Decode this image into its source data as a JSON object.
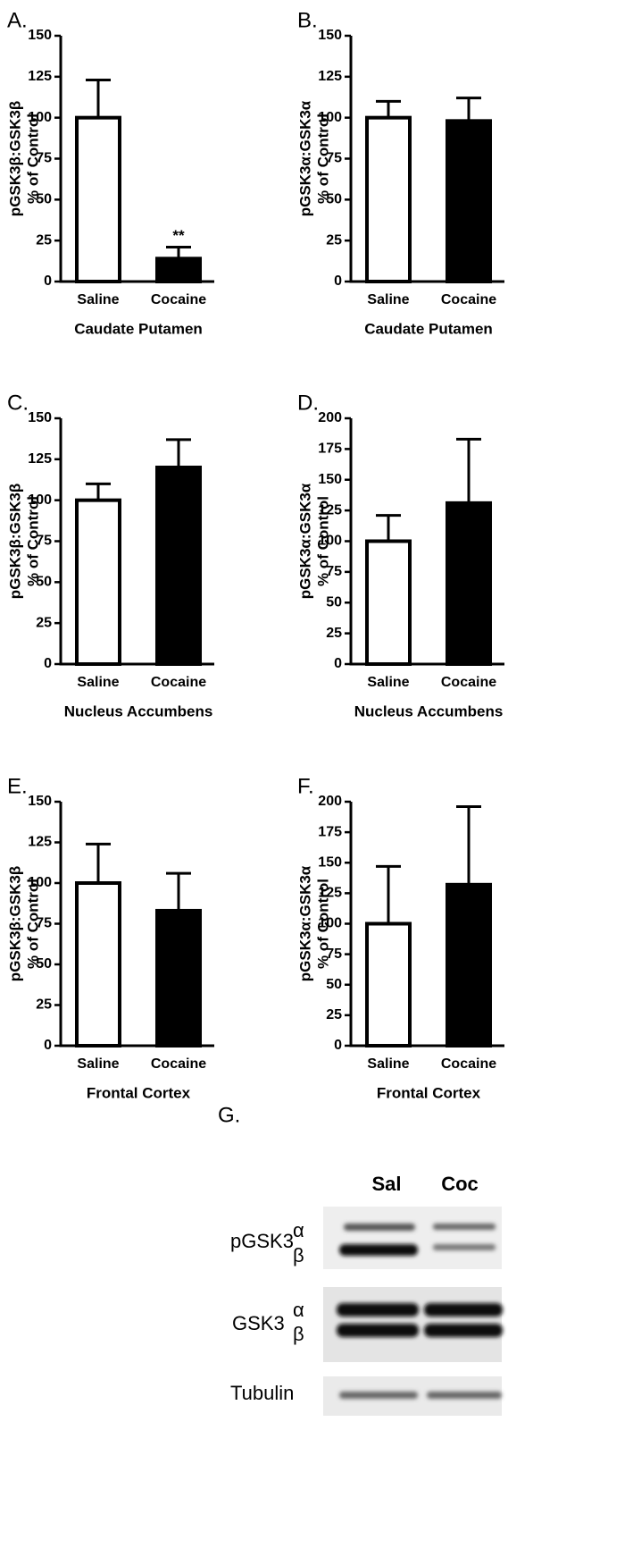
{
  "chart_data": [
    {
      "type": "bar",
      "panel": "A.",
      "ylabel": [
        "pGSK3β:GSK3β",
        "% of Control"
      ],
      "xlabel": "Caudate Putamen",
      "categories": [
        "Saline",
        "Cocaine"
      ],
      "values": [
        100,
        14
      ],
      "errors": [
        23,
        7
      ],
      "colors": [
        "#ffffff",
        "#000000"
      ],
      "annotations": [
        {
          "text": "**",
          "category": "Cocaine"
        }
      ],
      "ylim": [
        0,
        150
      ],
      "yticks": [
        0,
        25,
        50,
        75,
        100,
        125,
        150
      ]
    },
    {
      "type": "bar",
      "panel": "B.",
      "ylabel": [
        "pGSK3α:GSK3α",
        "% of Control"
      ],
      "xlabel": "Caudate Putamen",
      "categories": [
        "Saline",
        "Cocaine"
      ],
      "values": [
        100,
        98
      ],
      "errors": [
        10,
        14
      ],
      "colors": [
        "#ffffff",
        "#000000"
      ],
      "ylim": [
        0,
        150
      ],
      "yticks": [
        0,
        25,
        50,
        75,
        100,
        125,
        150
      ]
    },
    {
      "type": "bar",
      "panel": "C.",
      "ylabel": [
        "pGSK3β:GSK3β",
        "% of Control"
      ],
      "xlabel": "Nucleus Accumbens",
      "categories": [
        "Saline",
        "Cocaine"
      ],
      "values": [
        100,
        120
      ],
      "errors": [
        10,
        17
      ],
      "colors": [
        "#ffffff",
        "#000000"
      ],
      "ylim": [
        0,
        150
      ],
      "yticks": [
        0,
        25,
        50,
        75,
        100,
        125,
        150
      ]
    },
    {
      "type": "bar",
      "panel": "D.",
      "ylabel": [
        "pGSK3α:GSK3α",
        "% of Control"
      ],
      "xlabel": "Nucleus Accumbens",
      "categories": [
        "Saline",
        "Cocaine"
      ],
      "values": [
        100,
        131
      ],
      "errors": [
        21,
        52
      ],
      "colors": [
        "#ffffff",
        "#000000"
      ],
      "ylim": [
        0,
        200
      ],
      "yticks": [
        0,
        25,
        50,
        75,
        100,
        125,
        150,
        175,
        200
      ]
    },
    {
      "type": "bar",
      "panel": "E.",
      "ylabel": [
        "pGSK3β:GSK3β",
        "% of Control"
      ],
      "xlabel": "Frontal Cortex",
      "categories": [
        "Saline",
        "Cocaine"
      ],
      "values": [
        100,
        83
      ],
      "errors": [
        24,
        23
      ],
      "colors": [
        "#ffffff",
        "#000000"
      ],
      "ylim": [
        0,
        150
      ],
      "yticks": [
        0,
        25,
        50,
        75,
        100,
        125,
        150
      ]
    },
    {
      "type": "bar",
      "panel": "F.",
      "ylabel": [
        "pGSK3α:GSK3α",
        "% of Control"
      ],
      "xlabel": "Frontal Cortex",
      "categories": [
        "Saline",
        "Cocaine"
      ],
      "values": [
        100,
        132
      ],
      "errors": [
        47,
        64
      ],
      "colors": [
        "#ffffff",
        "#000000"
      ],
      "ylim": [
        0,
        200
      ],
      "yticks": [
        0,
        25,
        50,
        75,
        100,
        125,
        150,
        175,
        200
      ]
    }
  ],
  "blot": {
    "panel": "G.",
    "lanes": [
      "Sal",
      "Coc"
    ],
    "rows": [
      {
        "label": "pGSK3",
        "isoforms": [
          "α",
          "β"
        ]
      },
      {
        "label": "GSK3",
        "isoforms": [
          "α",
          "β"
        ]
      },
      {
        "label": "Tubulin"
      }
    ]
  }
}
